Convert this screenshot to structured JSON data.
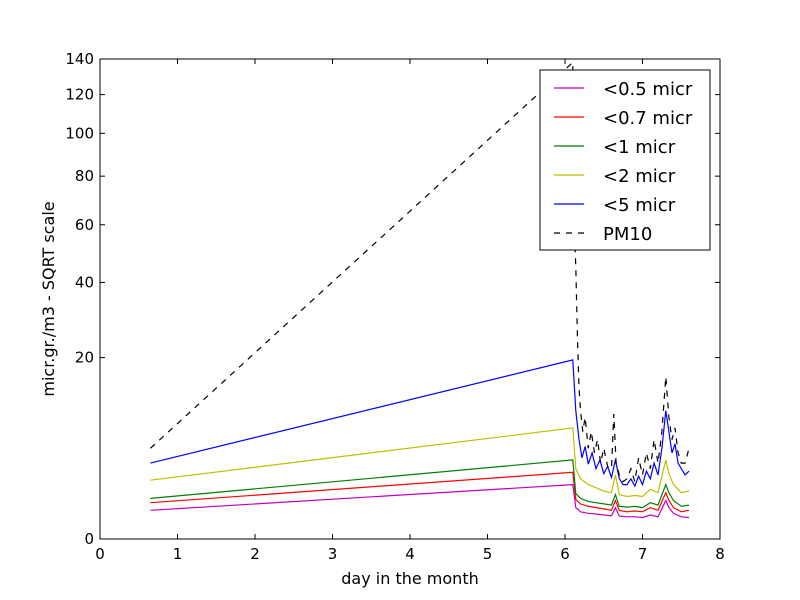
{
  "chart_data": {
    "type": "line",
    "title": "",
    "xlabel": "day in the month",
    "ylabel": "micr.gr./m3 - SQRT scale",
    "xlim": [
      0,
      8
    ],
    "ylim": [
      0,
      140
    ],
    "y_scale": "sqrt",
    "x_ticks": [
      0,
      1,
      2,
      3,
      4,
      5,
      6,
      7,
      8
    ],
    "y_ticks": [
      0,
      20,
      40,
      60,
      80,
      100,
      120,
      140
    ],
    "grid": false,
    "legend_position": "top-right",
    "series": [
      {
        "name": "<0.5 micr",
        "color": "#bf00bf",
        "dash": false,
        "points": [
          [
            0.65,
            0.5
          ],
          [
            6.1,
            1.8
          ],
          [
            6.14,
            0.6
          ],
          [
            6.2,
            0.45
          ],
          [
            6.3,
            0.4
          ],
          [
            6.4,
            0.38
          ],
          [
            6.5,
            0.35
          ],
          [
            6.6,
            0.33
          ],
          [
            6.65,
            0.6
          ],
          [
            6.7,
            0.32
          ],
          [
            6.8,
            0.3
          ],
          [
            6.9,
            0.3
          ],
          [
            7.0,
            0.28
          ],
          [
            7.1,
            0.35
          ],
          [
            7.2,
            0.3
          ],
          [
            7.3,
            0.9
          ],
          [
            7.34,
            0.6
          ],
          [
            7.4,
            0.4
          ],
          [
            7.5,
            0.3
          ],
          [
            7.6,
            0.28
          ]
        ]
      },
      {
        "name": "<0.7 micr",
        "color": "#ff0000",
        "dash": false,
        "points": [
          [
            0.65,
            0.8
          ],
          [
            6.1,
            2.7
          ],
          [
            6.14,
            0.95
          ],
          [
            6.2,
            0.75
          ],
          [
            6.3,
            0.65
          ],
          [
            6.4,
            0.6
          ],
          [
            6.5,
            0.55
          ],
          [
            6.6,
            0.5
          ],
          [
            6.65,
            0.9
          ],
          [
            6.7,
            0.5
          ],
          [
            6.8,
            0.45
          ],
          [
            6.9,
            0.48
          ],
          [
            7.0,
            0.45
          ],
          [
            7.1,
            0.6
          ],
          [
            7.2,
            0.5
          ],
          [
            7.3,
            1.3
          ],
          [
            7.34,
            0.9
          ],
          [
            7.4,
            0.6
          ],
          [
            7.5,
            0.45
          ],
          [
            7.6,
            0.5
          ]
        ]
      },
      {
        "name": "<1 micr",
        "color": "#007f00",
        "dash": false,
        "points": [
          [
            0.65,
            1.0
          ],
          [
            6.1,
            3.8
          ],
          [
            6.14,
            1.25
          ],
          [
            6.2,
            1.0
          ],
          [
            6.3,
            0.85
          ],
          [
            6.4,
            0.8
          ],
          [
            6.5,
            0.75
          ],
          [
            6.6,
            0.7
          ],
          [
            6.65,
            1.2
          ],
          [
            6.7,
            0.65
          ],
          [
            6.8,
            0.62
          ],
          [
            6.9,
            0.65
          ],
          [
            7.0,
            0.6
          ],
          [
            7.1,
            0.8
          ],
          [
            7.2,
            0.7
          ],
          [
            7.3,
            1.8
          ],
          [
            7.34,
            1.3
          ],
          [
            7.4,
            0.9
          ],
          [
            7.5,
            0.65
          ],
          [
            7.6,
            0.7
          ]
        ]
      },
      {
        "name": "<2 micr",
        "color": "#bfbf00",
        "dash": false,
        "points": [
          [
            0.65,
            2.1
          ],
          [
            6.1,
            7.5
          ],
          [
            6.14,
            3.0
          ],
          [
            6.2,
            2.2
          ],
          [
            6.3,
            1.8
          ],
          [
            6.4,
            1.6
          ],
          [
            6.5,
            1.4
          ],
          [
            6.6,
            1.3
          ],
          [
            6.65,
            2.5
          ],
          [
            6.7,
            1.2
          ],
          [
            6.8,
            1.1
          ],
          [
            6.9,
            1.15
          ],
          [
            7.0,
            1.1
          ],
          [
            7.1,
            1.5
          ],
          [
            7.2,
            1.3
          ],
          [
            7.3,
            3.8
          ],
          [
            7.34,
            2.6
          ],
          [
            7.4,
            1.8
          ],
          [
            7.5,
            1.3
          ],
          [
            7.6,
            1.4
          ]
        ]
      },
      {
        "name": "<5 micr",
        "color": "#0000ff",
        "dash": false,
        "points": [
          [
            0.65,
            3.5
          ],
          [
            6.1,
            19.5
          ],
          [
            6.14,
            10.0
          ],
          [
            6.18,
            6.0
          ],
          [
            6.22,
            4.0
          ],
          [
            6.26,
            5.2
          ],
          [
            6.3,
            3.4
          ],
          [
            6.35,
            4.5
          ],
          [
            6.4,
            3.0
          ],
          [
            6.45,
            3.8
          ],
          [
            6.5,
            2.6
          ],
          [
            6.55,
            3.2
          ],
          [
            6.6,
            2.3
          ],
          [
            6.65,
            3.8
          ],
          [
            6.7,
            2.2
          ],
          [
            6.75,
            1.8
          ],
          [
            6.8,
            1.8
          ],
          [
            6.85,
            2.2
          ],
          [
            6.9,
            1.7
          ],
          [
            6.95,
            2.4
          ],
          [
            7.0,
            1.8
          ],
          [
            7.05,
            2.8
          ],
          [
            7.1,
            2.2
          ],
          [
            7.15,
            3.5
          ],
          [
            7.2,
            2.5
          ],
          [
            7.25,
            5.0
          ],
          [
            7.3,
            10.0
          ],
          [
            7.34,
            7.0
          ],
          [
            7.38,
            4.5
          ],
          [
            7.42,
            5.5
          ],
          [
            7.46,
            3.5
          ],
          [
            7.5,
            3.0
          ],
          [
            7.55,
            2.5
          ],
          [
            7.6,
            2.8
          ]
        ]
      },
      {
        "name": "PM10",
        "color": "#000000",
        "dash": true,
        "points": [
          [
            0.65,
            5.0
          ],
          [
            6.1,
            138
          ],
          [
            6.12,
            60
          ],
          [
            6.14,
            45
          ],
          [
            6.16,
            25
          ],
          [
            6.18,
            14
          ],
          [
            6.2,
            10
          ],
          [
            6.23,
            7
          ],
          [
            6.26,
            9
          ],
          [
            6.3,
            5
          ],
          [
            6.34,
            7
          ],
          [
            6.38,
            4.5
          ],
          [
            6.42,
            6
          ],
          [
            6.46,
            3.5
          ],
          [
            6.5,
            5
          ],
          [
            6.55,
            3.2
          ],
          [
            6.6,
            3.0
          ],
          [
            6.63,
            9.5
          ],
          [
            6.66,
            3.5
          ],
          [
            6.7,
            2.5
          ],
          [
            6.75,
            2.0
          ],
          [
            6.8,
            2.2
          ],
          [
            6.85,
            3.0
          ],
          [
            6.9,
            2.0
          ],
          [
            6.95,
            4.0
          ],
          [
            7.0,
            2.5
          ],
          [
            7.05,
            4.5
          ],
          [
            7.1,
            3.0
          ],
          [
            7.15,
            6.0
          ],
          [
            7.2,
            3.5
          ],
          [
            7.25,
            7.0
          ],
          [
            7.3,
            16.0
          ],
          [
            7.34,
            9.0
          ],
          [
            7.38,
            6.0
          ],
          [
            7.42,
            7.5
          ],
          [
            7.46,
            4.5
          ],
          [
            7.5,
            3.5
          ],
          [
            7.55,
            3.5
          ],
          [
            7.6,
            5.0
          ]
        ]
      }
    ]
  }
}
